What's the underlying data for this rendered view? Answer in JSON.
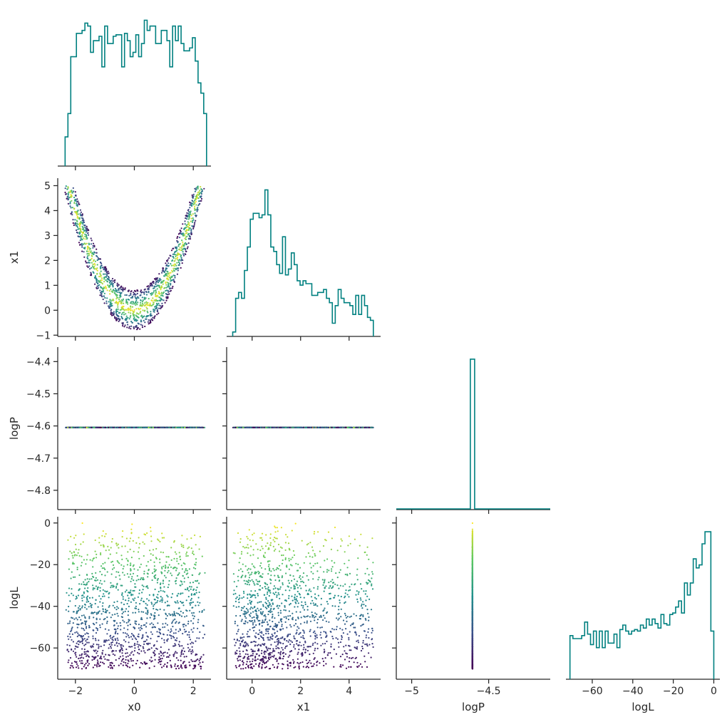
{
  "colors": {
    "histogram": "#008080",
    "axis": "#262626",
    "viridis": [
      "#440154",
      "#3b528b",
      "#21918c",
      "#5ec962",
      "#fde725"
    ]
  },
  "chart_data": [
    {
      "type": "histogram",
      "panel": "x0-x0",
      "variable": "x0",
      "xlim": [
        -2.6,
        2.6
      ],
      "xticks": [
        -2,
        0,
        2
      ],
      "show_tick_labels": false,
      "ylim": [
        0,
        1.08
      ],
      "bin_edges_range": [
        -2.35,
        2.45
      ],
      "heights": [
        0.2,
        0.36,
        0.75,
        0.75,
        0.91,
        0.91,
        0.93,
        0.98,
        0.96,
        0.78,
        0.86,
        0.86,
        0.89,
        0.68,
        0.96,
        0.84,
        0.84,
        0.89,
        0.9,
        0.9,
        0.68,
        0.91,
        0.86,
        0.75,
        0.78,
        0.9,
        0.75,
        0.84,
        1.0,
        0.93,
        0.96,
        0.96,
        0.84,
        0.84,
        0.93,
        0.93,
        0.86,
        0.68,
        0.96,
        0.86,
        0.96,
        0.84,
        0.79,
        0.79,
        0.81,
        0.88,
        0.72,
        0.57,
        0.5,
        0.36
      ]
    },
    {
      "type": "scatter",
      "panel": "x0-x1",
      "xlabel": "",
      "ylabel": "x1",
      "xlim": [
        -2.6,
        2.6
      ],
      "xticks": [
        -2,
        0,
        2
      ],
      "ylim": [
        -1.05,
        5.3
      ],
      "yticks": [
        -1,
        0,
        1,
        2,
        3,
        4,
        5
      ],
      "color_by": "logL",
      "relation": "x1 = x0^2 + u, u in [-0.8, 0.8]; logL highest near u = 0"
    },
    {
      "type": "histogram",
      "panel": "x1-x1",
      "variable": "x1",
      "xlim": [
        -1.05,
        5.3
      ],
      "xticks": [
        0,
        2,
        4
      ],
      "show_tick_labels": false,
      "ylim": [
        0,
        1.08
      ],
      "bin_edges_range": [
        -0.8,
        5.0
      ],
      "heights": [
        0.03,
        0.26,
        0.3,
        0.26,
        0.45,
        0.61,
        0.8,
        0.84,
        0.84,
        0.81,
        0.83,
        1.0,
        0.83,
        0.61,
        0.58,
        0.49,
        0.43,
        0.68,
        0.42,
        0.46,
        0.57,
        0.49,
        0.38,
        0.35,
        0.38,
        0.36,
        0.36,
        0.28,
        0.28,
        0.3,
        0.3,
        0.32,
        0.26,
        0.23,
        0.09,
        0.21,
        0.32,
        0.26,
        0.23,
        0.23,
        0.21,
        0.15,
        0.28,
        0.15,
        0.28,
        0.21,
        0.13,
        0.11
      ]
    },
    {
      "type": "scatter",
      "panel": "x0-logP",
      "xlabel": "",
      "ylabel": "logP",
      "xlim": [
        -2.6,
        2.6
      ],
      "xticks": [
        -2,
        0,
        2
      ],
      "ylim": [
        -4.86,
        -4.355
      ],
      "yticks": [
        -4.8,
        -4.7,
        -4.6,
        -4.5,
        -4.4
      ],
      "constant_y": -4.605,
      "x_range": [
        -2.35,
        2.4
      ],
      "color_by": "logL"
    },
    {
      "type": "scatter",
      "panel": "x1-logP",
      "xlim": [
        -1.05,
        5.3
      ],
      "xticks": [
        0,
        2,
        4
      ],
      "ylim": [
        -4.86,
        -4.355
      ],
      "yticks": [
        -4.8,
        -4.7,
        -4.6,
        -4.5,
        -4.4
      ],
      "constant_y": -4.605,
      "x_range": [
        -0.8,
        5.0
      ],
      "color_by": "logL"
    },
    {
      "type": "histogram",
      "panel": "logP-logP",
      "variable": "logP",
      "xlim": [
        -5.1,
        -4.1
      ],
      "xticks": [
        -5.0,
        -4.5
      ],
      "show_tick_labels": false,
      "ylim": [
        0,
        1.08
      ],
      "spike_at": -4.605,
      "spike_height": 1.0
    },
    {
      "type": "scatter",
      "panel": "x0-logL",
      "xlabel": "x0",
      "ylabel": "logL",
      "xlim": [
        -2.6,
        2.6
      ],
      "xticks": [
        -2,
        0,
        2
      ],
      "ylim": [
        -75,
        3
      ],
      "yticks": [
        0,
        -20,
        -40,
        -60
      ],
      "color_by": "logL",
      "logL_range": [
        -70,
        0
      ]
    },
    {
      "type": "scatter",
      "panel": "x1-logL",
      "xlabel": "x1",
      "xlim": [
        -1.05,
        5.3
      ],
      "xticks": [
        0,
        2,
        4
      ],
      "ylim": [
        -75,
        3
      ],
      "yticks": [
        0,
        -20,
        -40,
        -60
      ],
      "color_by": "logL",
      "logL_range": [
        -70,
        0
      ]
    },
    {
      "type": "scatter",
      "panel": "logP-logL",
      "xlabel": "logP",
      "xlim": [
        -5.1,
        -4.1
      ],
      "xticks": [
        -5.0,
        -4.5
      ],
      "ylim": [
        -75,
        3
      ],
      "yticks": [
        0,
        -20,
        -40,
        -60
      ],
      "constant_x": -4.605,
      "color_by": "logL"
    },
    {
      "type": "histogram",
      "panel": "logL-logL",
      "variable": "logL",
      "xlabel": "logL",
      "xlim": [
        -73,
        3
      ],
      "xticks": [
        -60,
        -40,
        -20,
        0
      ],
      "ylim": [
        0,
        1.08
      ],
      "bin_edges_range": [
        -71,
        0
      ],
      "heights": [
        0.29,
        0.27,
        0.27,
        0.27,
        0.29,
        0.38,
        0.3,
        0.23,
        0.32,
        0.21,
        0.32,
        0.21,
        0.32,
        0.24,
        0.24,
        0.3,
        0.21,
        0.33,
        0.36,
        0.32,
        0.3,
        0.32,
        0.33,
        0.32,
        0.36,
        0.34,
        0.4,
        0.36,
        0.4,
        0.37,
        0.34,
        0.43,
        0.37,
        0.36,
        0.43,
        0.44,
        0.48,
        0.52,
        0.44,
        0.64,
        0.56,
        0.64,
        0.8,
        0.74,
        0.76,
        0.9,
        0.98,
        0.98,
        0.32
      ]
    }
  ]
}
